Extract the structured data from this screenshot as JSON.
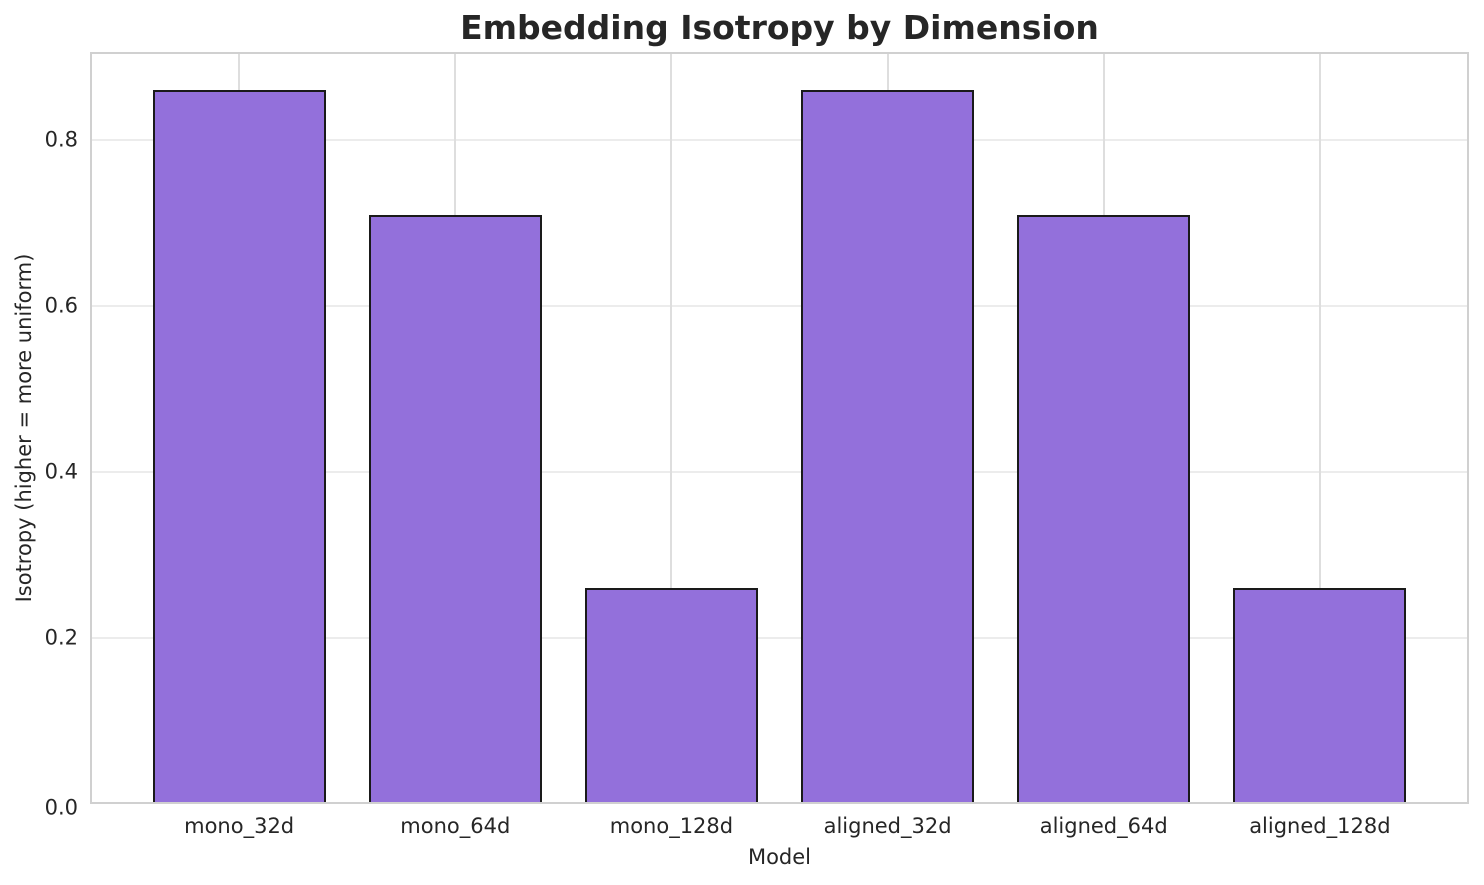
{
  "chart_data": {
    "type": "bar",
    "title": "Embedding Isotropy by Dimension",
    "xlabel": "Model",
    "ylabel": "Isotropy (higher = more uniform)",
    "categories": [
      "mono_32d",
      "mono_64d",
      "mono_128d",
      "aligned_32d",
      "aligned_64d",
      "aligned_128d"
    ],
    "values": [
      0.86,
      0.71,
      0.26,
      0.86,
      0.71,
      0.26
    ],
    "ytick_labels": [
      "0.0",
      "0.2",
      "0.4",
      "0.6",
      "0.8"
    ],
    "ytick_values": [
      0.0,
      0.2,
      0.4,
      0.6,
      0.8
    ],
    "ylim": [
      0,
      0.906
    ],
    "xlim": [
      -0.69,
      5.69
    ],
    "bar_width": 0.8,
    "grid": "both",
    "legend": "none",
    "colors": {
      "bar_fill": "#9370DB",
      "bar_edge": "#1a1a1a",
      "grid_horizontal": "#ececec",
      "grid_vertical": "#dedede",
      "spine": "#d0d0d0",
      "text": "#262626",
      "background": "#ffffff"
    }
  }
}
